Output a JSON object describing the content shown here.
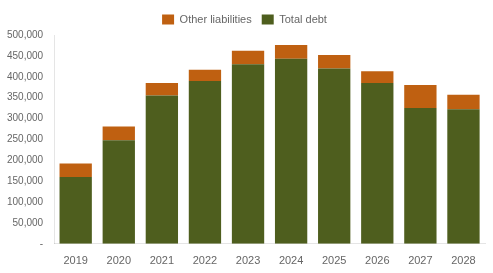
{
  "chart_data": {
    "type": "bar",
    "stacked": true,
    "categories": [
      "2019",
      "2020",
      "2021",
      "2022",
      "2023",
      "2024",
      "2025",
      "2026",
      "2027",
      "2028"
    ],
    "series": [
      {
        "name": "Total debt",
        "color": "#4e5e1e",
        "values": [
          160000,
          248000,
          355000,
          390000,
          430000,
          443000,
          420000,
          385000,
          325000,
          322000
        ]
      },
      {
        "name": "Other liabilities",
        "color": "#bf6011",
        "values": [
          32000,
          33000,
          30000,
          27000,
          32000,
          33000,
          32000,
          28000,
          55000,
          35000
        ]
      }
    ],
    "ylim": [
      0,
      500000
    ],
    "yticks": [
      {
        "value": 0,
        "label": "-"
      },
      {
        "value": 50000,
        "label": "50,000"
      },
      {
        "value": 100000,
        "label": "100,000"
      },
      {
        "value": 150000,
        "label": "150,000"
      },
      {
        "value": 200000,
        "label": "200,000"
      },
      {
        "value": 250000,
        "label": "250,000"
      },
      {
        "value": 300000,
        "label": "300,000"
      },
      {
        "value": 350000,
        "label": "350,000"
      },
      {
        "value": 400000,
        "label": "400,000"
      },
      {
        "value": 450000,
        "label": "450,000"
      },
      {
        "value": 500000,
        "label": "500,000"
      }
    ],
    "grid": false,
    "legend": "top"
  }
}
